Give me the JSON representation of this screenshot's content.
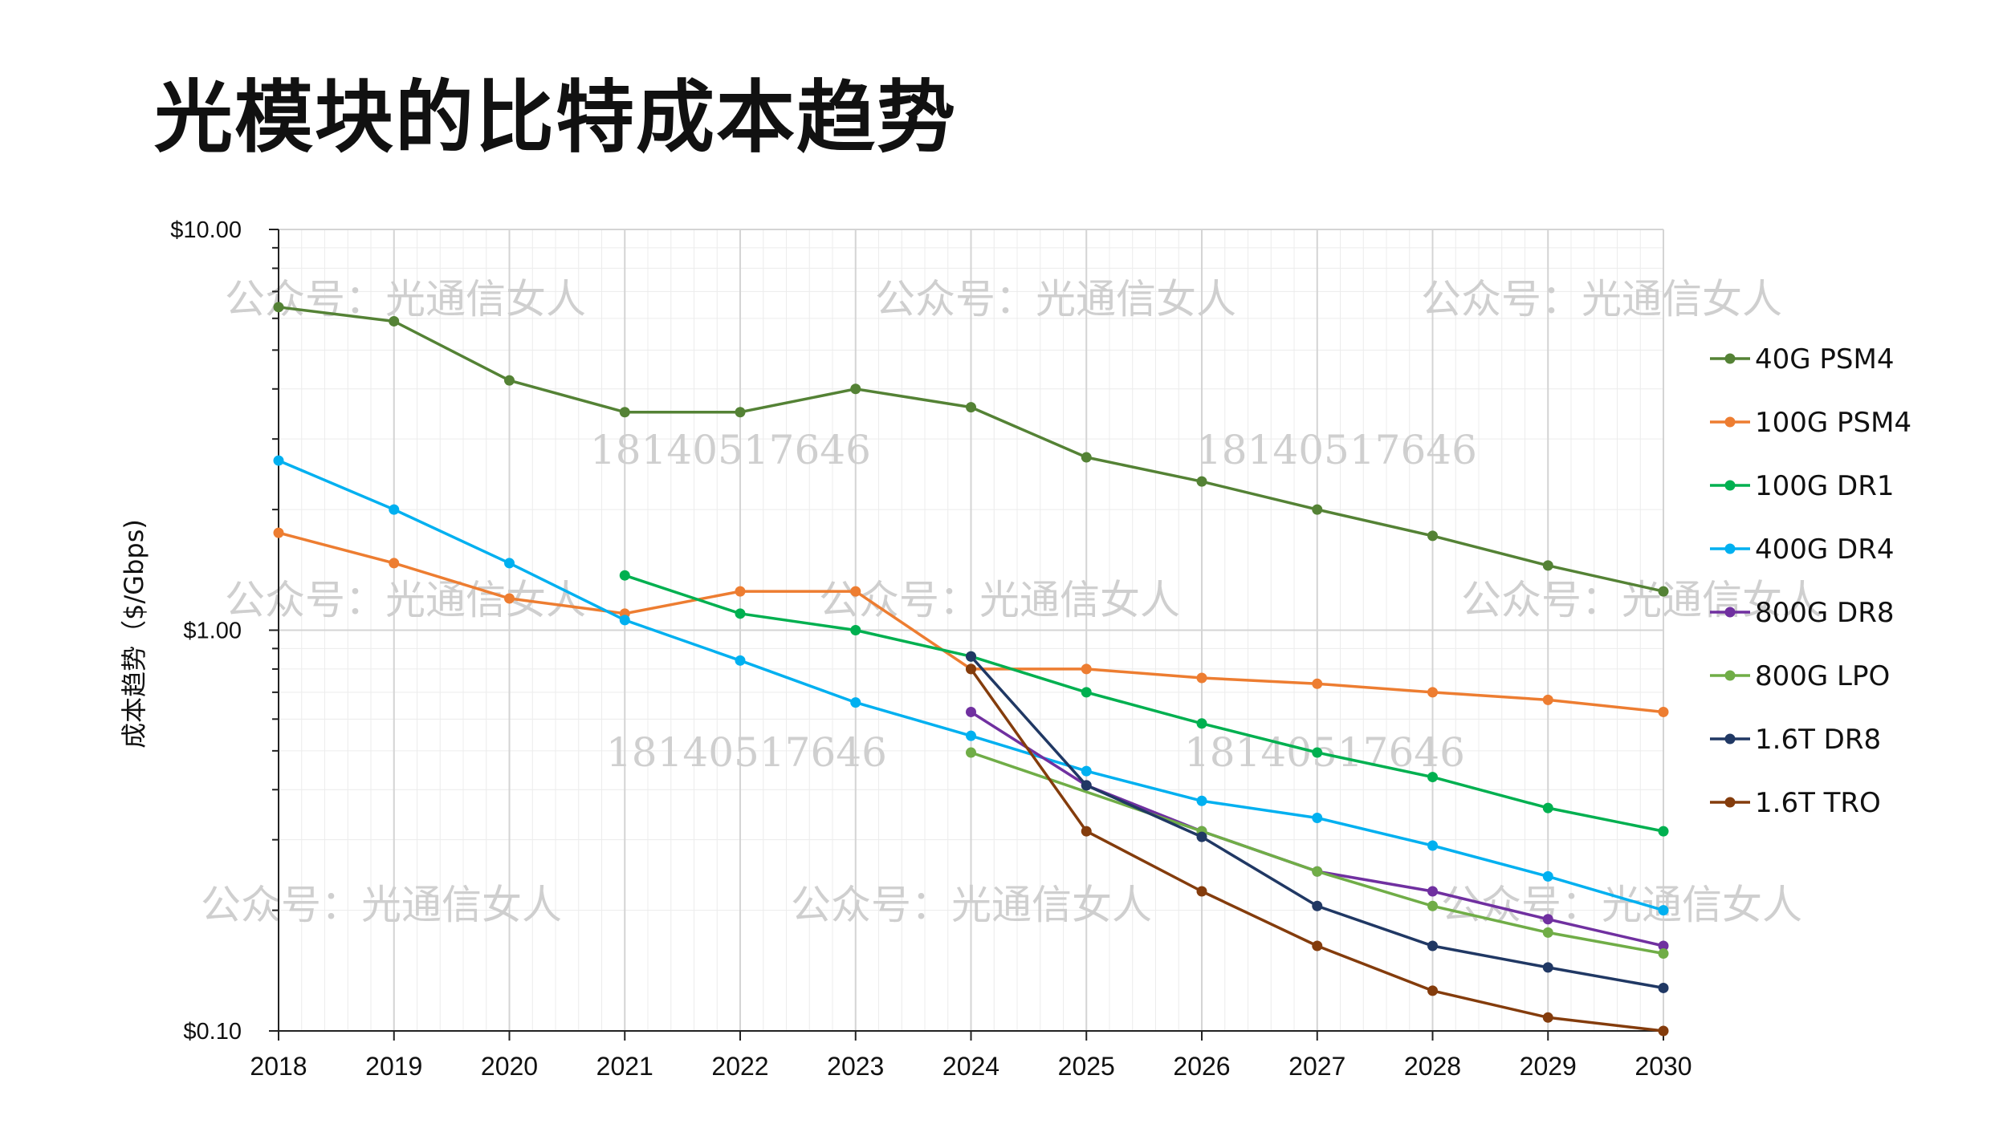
{
  "header": {
    "title": "光模块的比特成本趋势"
  },
  "watermarks": {
    "account": "公众号：光通信女人",
    "phone": "18140517646"
  },
  "chart_data": {
    "type": "line",
    "title": "光模块的比特成本趋势",
    "xlabel": "",
    "ylabel": "成本趋势（$/Gbps)",
    "yscale": "log",
    "ylim": [
      0.1,
      10
    ],
    "yticks": [
      {
        "value": 10,
        "label": "$10.00"
      },
      {
        "value": 1,
        "label": "$1.00"
      },
      {
        "value": 0.1,
        "label": "$0.10"
      }
    ],
    "categories": [
      "2018",
      "2019",
      "2020",
      "2021",
      "2022",
      "2023",
      "2024",
      "2025",
      "2026",
      "2027",
      "2028",
      "2029",
      "2030"
    ],
    "legend_position": "right",
    "series": [
      {
        "name": "40G PSM4",
        "color": "#548235",
        "values": [
          6.4,
          5.9,
          4.2,
          3.5,
          3.5,
          4.0,
          3.6,
          2.7,
          2.35,
          2.0,
          1.72,
          1.45,
          1.25
        ]
      },
      {
        "name": "100G PSM4",
        "color": "#ED7D31",
        "values": [
          1.75,
          1.47,
          1.2,
          1.1,
          1.25,
          1.25,
          0.8,
          0.8,
          0.76,
          0.735,
          0.7,
          0.67,
          0.625
        ]
      },
      {
        "name": "100G DR1",
        "color": "#00B050",
        "values": [
          null,
          null,
          null,
          1.37,
          1.1,
          1.0,
          0.86,
          0.7,
          0.585,
          0.495,
          0.43,
          0.36,
          0.315
        ]
      },
      {
        "name": "400G DR4",
        "color": "#00B0F0",
        "values": [
          2.65,
          2.0,
          1.47,
          1.06,
          0.84,
          0.66,
          0.545,
          0.445,
          0.375,
          0.34,
          0.29,
          0.243,
          0.2
        ]
      },
      {
        "name": "800G DR8",
        "color": "#7030A0",
        "values": [
          null,
          null,
          null,
          null,
          null,
          null,
          0.625,
          0.41,
          0.315,
          0.25,
          0.223,
          0.19,
          0.163
        ]
      },
      {
        "name": "800G LPO",
        "color": "#70AD47",
        "values": [
          null,
          null,
          null,
          null,
          null,
          null,
          0.495,
          null,
          0.315,
          0.25,
          0.205,
          0.176,
          0.156
        ]
      },
      {
        "name": "1.6T DR8",
        "color": "#203864",
        "values": [
          null,
          null,
          null,
          null,
          null,
          null,
          0.86,
          0.41,
          0.305,
          0.205,
          0.163,
          0.144,
          0.128
        ]
      },
      {
        "name": "1.6T TRO",
        "color": "#843C0C",
        "values": [
          null,
          null,
          null,
          null,
          null,
          null,
          0.8,
          0.315,
          0.223,
          0.163,
          0.126,
          0.108,
          0.1
        ]
      }
    ]
  }
}
